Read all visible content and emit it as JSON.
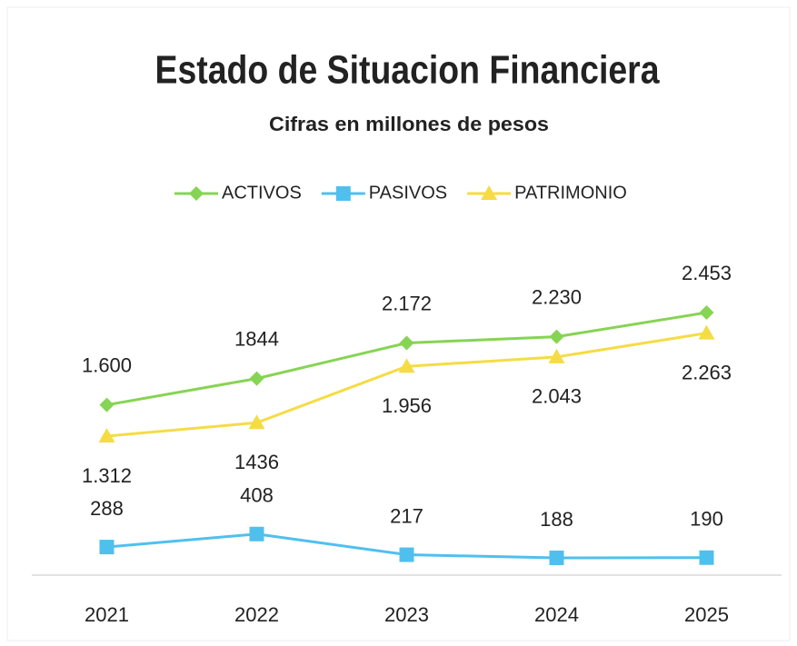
{
  "chart_data": {
    "type": "line",
    "title": "Estado de Situacion Financiera",
    "subtitle": "Cifras  en millones de pesos",
    "categories": [
      "2021",
      "2022",
      "2023",
      "2024",
      "2025"
    ],
    "series": [
      {
        "name": "ACTIVOS",
        "color": "#86d453",
        "marker": "diamond",
        "values": [
          1600,
          1844,
          2172,
          2230,
          2453
        ],
        "value_labels": [
          "1.600",
          "1844",
          "2.172",
          "2.230",
          "2.453"
        ]
      },
      {
        "name": "PASIVOS",
        "color": "#4fc0ee",
        "marker": "square",
        "values": [
          288,
          408,
          217,
          188,
          190
        ]
      },
      {
        "name": "PATRIMONIO",
        "color": "#f5dc45",
        "marker": "triangle",
        "values": [
          1312,
          1436,
          1956,
          2043,
          2263
        ],
        "value_labels": [
          "1.312",
          "1436",
          "1.956",
          "2.043",
          "2.263"
        ]
      }
    ],
    "legend": "top"
  }
}
